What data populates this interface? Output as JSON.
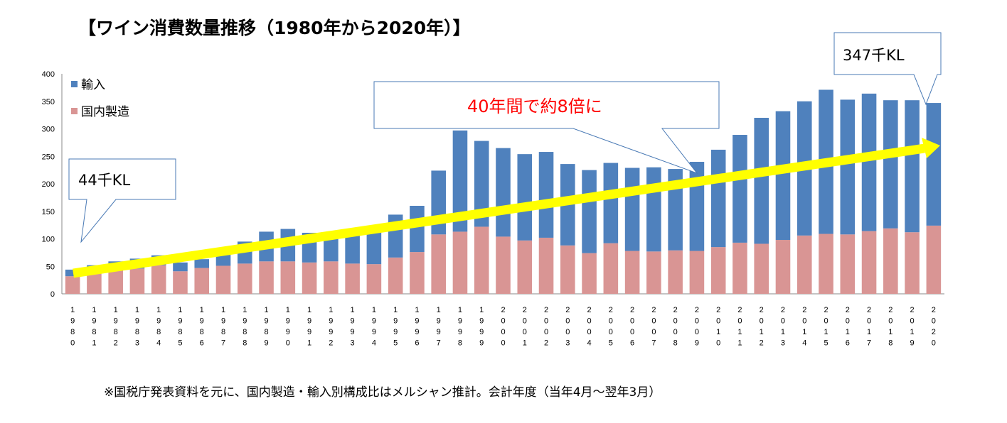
{
  "title": "【ワイン消費数量推移（1980年から2020年）】",
  "footnote": "※国税庁発表資料を元に、国内製造・輸入別構成比はメルシャン推計。会計年度（当年4月～翌年3月）",
  "colors": {
    "import": "#4f81bd",
    "domestic": "#d99594",
    "arrow": "#ffff00",
    "growth_text": "#ff0000",
    "callout_border": "#4a7ab5"
  },
  "annotations": {
    "start_label": "44千KL",
    "end_label": "347千KL",
    "growth_label": "40年間で約8倍に"
  },
  "chart_data": {
    "type": "bar",
    "stacked": true,
    "title": "【ワイン消費数量推移（1980年から2020年）】",
    "xlabel": "",
    "ylabel": "",
    "ylim": [
      0,
      400
    ],
    "yticks": [
      "0",
      "50",
      "100",
      "150",
      "200",
      "250",
      "300",
      "350",
      "400"
    ],
    "legend": {
      "placement": "top-left",
      "entries": [
        "輸入",
        "国内製造"
      ]
    },
    "categories": [
      "1980",
      "1981",
      "1982",
      "1983",
      "1984",
      "1985",
      "1986",
      "1987",
      "1988",
      "1989",
      "1990",
      "1991",
      "1992",
      "1993",
      "1994",
      "1995",
      "1996",
      "1997",
      "1998",
      "1999",
      "2000",
      "2001",
      "2002",
      "2003",
      "2004",
      "2005",
      "2006",
      "2007",
      "2008",
      "2009",
      "2010",
      "2011",
      "2012",
      "2013",
      "2014",
      "2015",
      "2016",
      "2017",
      "2018",
      "2019",
      "2020"
    ],
    "totals": [
      44,
      52,
      59,
      64,
      70,
      57,
      63,
      75,
      95,
      113,
      118,
      111,
      102,
      108,
      115,
      144,
      160,
      224,
      297,
      278,
      265,
      254,
      258,
      236,
      225,
      238,
      229,
      230,
      227,
      240,
      262,
      289,
      320,
      332,
      350,
      371,
      353,
      364,
      352,
      352,
      347
    ],
    "series": [
      {
        "name": "国内製造",
        "values": [
          32,
          37,
          42,
          46,
          52,
          41,
          47,
          51,
          55,
          59,
          59,
          57,
          59,
          55,
          54,
          66,
          76,
          108,
          113,
          122,
          104,
          97,
          102,
          88,
          74,
          92,
          78,
          77,
          79,
          78,
          85,
          93,
          91,
          98,
          106,
          109,
          108,
          114,
          119,
          112,
          124
        ]
      },
      {
        "name": "輸入",
        "values": [
          12,
          15,
          17,
          18,
          18,
          16,
          16,
          24,
          40,
          54,
          59,
          54,
          43,
          53,
          61,
          78,
          84,
          116,
          184,
          156,
          161,
          157,
          156,
          148,
          151,
          146,
          151,
          153,
          148,
          162,
          177,
          196,
          229,
          234,
          244,
          262,
          245,
          250,
          233,
          240,
          223
        ]
      }
    ]
  }
}
